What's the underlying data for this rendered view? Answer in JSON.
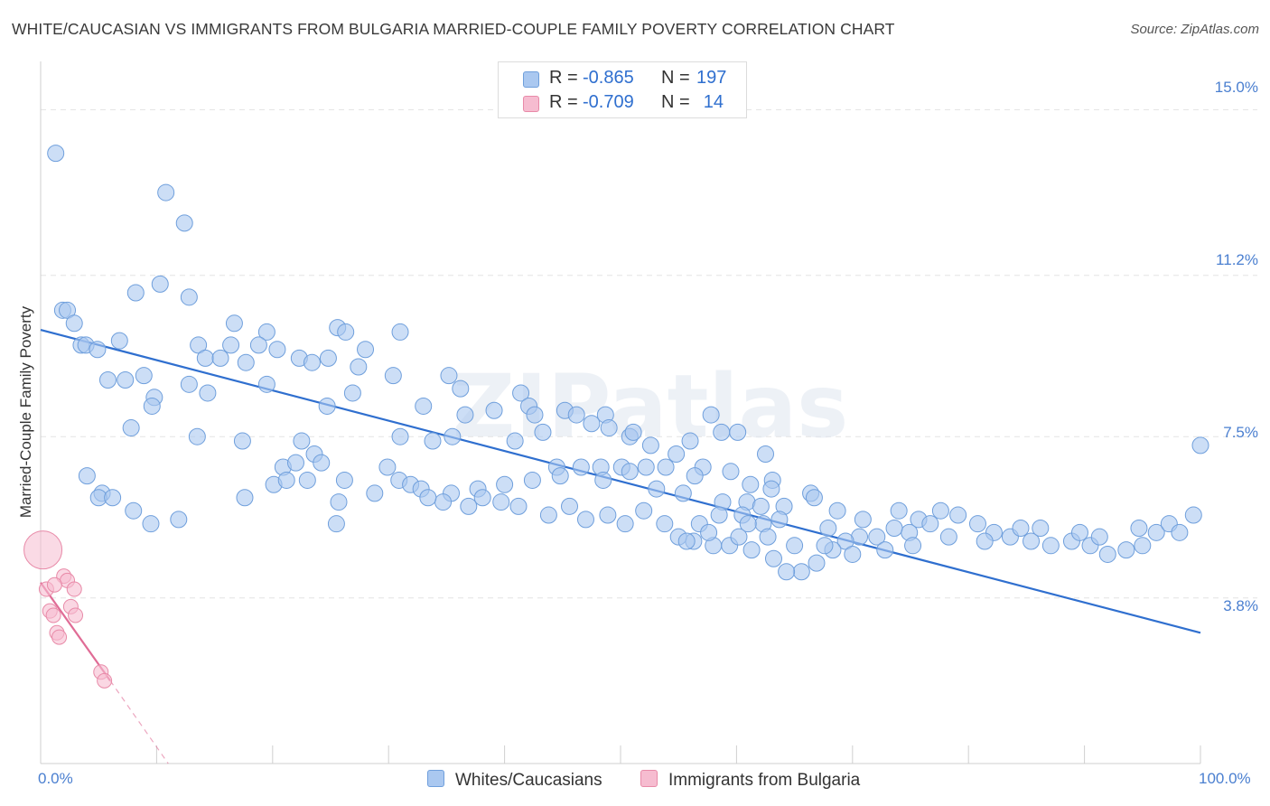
{
  "title": "WHITE/CAUCASIAN VS IMMIGRANTS FROM BULGARIA MARRIED-COUPLE FAMILY POVERTY CORRELATION CHART",
  "source": "Source: ZipAtlas.com",
  "watermark": "ZIPatlas",
  "colors": {
    "blue_fill": "#aac8f0",
    "blue_stroke": "#6f9fdc",
    "blue_line": "#2f6fcf",
    "pink_fill": "#f6bcd0",
    "pink_stroke": "#e88aa8",
    "pink_line": "#e06c96",
    "tick_label": "#4a7fd0",
    "grid": "#e3e3e3"
  },
  "legend": {
    "rows": [
      {
        "series": "blue",
        "r_label": "R =",
        "r_value": "-0.865",
        "n_label": "N =",
        "n_value": "197"
      },
      {
        "series": "pink",
        "r_label": "R =",
        "r_value": "-0.709",
        "n_label": "N =",
        "n_value": "14"
      }
    ]
  },
  "bottom_legend": [
    {
      "label": "Whites/Caucasians",
      "color": "#aac8f0"
    },
    {
      "label": "Immigrants from Bulgaria",
      "color": "#f6bcd0"
    }
  ],
  "chart_data": {
    "type": "scatter",
    "title": "WHITE/CAUCASIAN VS IMMIGRANTS FROM BULGARIA MARRIED-COUPLE FAMILY POVERTY CORRELATION CHART",
    "xlabel": "",
    "ylabel": "Married-Couple Family Poverty",
    "xlim": [
      0,
      100
    ],
    "ylim": [
      0,
      15.9
    ],
    "x_tick_labels": [
      "0.0%",
      "100.0%"
    ],
    "x_tick_values": [
      0,
      100
    ],
    "x_minor_ticks": [
      0,
      10,
      20,
      30,
      40,
      50,
      60,
      70,
      80,
      90,
      100
    ],
    "y_tick_labels": [
      "15.0%",
      "11.2%",
      "7.5%",
      "3.8%"
    ],
    "y_tick_values": [
      15.0,
      11.2,
      7.5,
      3.8
    ],
    "grid": true,
    "series": [
      {
        "name": "Whites/Caucasians",
        "color": "blue",
        "points": [
          [
            1.3,
            14.0
          ],
          [
            10.8,
            13.1
          ],
          [
            12.4,
            12.4
          ],
          [
            10.3,
            11.0
          ],
          [
            8.2,
            10.8
          ],
          [
            12.8,
            10.7
          ],
          [
            1.9,
            10.4
          ],
          [
            2.3,
            10.4
          ],
          [
            2.9,
            10.1
          ],
          [
            16.7,
            10.1
          ],
          [
            25.6,
            10.0
          ],
          [
            31.0,
            9.9
          ],
          [
            19.5,
            9.9
          ],
          [
            3.5,
            9.6
          ],
          [
            3.9,
            9.6
          ],
          [
            4.9,
            9.5
          ],
          [
            6.8,
            9.7
          ],
          [
            13.6,
            9.6
          ],
          [
            16.4,
            9.6
          ],
          [
            18.8,
            9.6
          ],
          [
            22.3,
            9.3
          ],
          [
            24.8,
            9.3
          ],
          [
            26.3,
            9.9
          ],
          [
            20.4,
            9.5
          ],
          [
            28.0,
            9.5
          ],
          [
            14.2,
            9.3
          ],
          [
            15.5,
            9.3
          ],
          [
            17.7,
            9.2
          ],
          [
            23.4,
            9.2
          ],
          [
            27.4,
            9.1
          ],
          [
            30.4,
            8.9
          ],
          [
            35.2,
            8.9
          ],
          [
            8.9,
            8.9
          ],
          [
            7.3,
            8.8
          ],
          [
            5.8,
            8.8
          ],
          [
            12.8,
            8.7
          ],
          [
            19.5,
            8.7
          ],
          [
            9.8,
            8.4
          ],
          [
            14.4,
            8.5
          ],
          [
            26.9,
            8.5
          ],
          [
            36.2,
            8.6
          ],
          [
            41.4,
            8.5
          ],
          [
            9.6,
            8.2
          ],
          [
            24.7,
            8.2
          ],
          [
            33.0,
            8.2
          ],
          [
            36.6,
            8.0
          ],
          [
            42.1,
            8.2
          ],
          [
            39.1,
            8.1
          ],
          [
            42.6,
            8.0
          ],
          [
            45.2,
            8.1
          ],
          [
            48.7,
            8.0
          ],
          [
            46.2,
            8.0
          ],
          [
            57.8,
            8.0
          ],
          [
            7.8,
            7.7
          ],
          [
            13.5,
            7.5
          ],
          [
            17.4,
            7.4
          ],
          [
            22.5,
            7.4
          ],
          [
            31.0,
            7.5
          ],
          [
            33.8,
            7.4
          ],
          [
            35.5,
            7.5
          ],
          [
            40.9,
            7.4
          ],
          [
            43.3,
            7.6
          ],
          [
            47.5,
            7.8
          ],
          [
            49.0,
            7.7
          ],
          [
            50.8,
            7.5
          ],
          [
            51.1,
            7.6
          ],
          [
            52.6,
            7.3
          ],
          [
            54.8,
            7.1
          ],
          [
            56.0,
            7.4
          ],
          [
            58.7,
            7.6
          ],
          [
            60.1,
            7.6
          ],
          [
            62.5,
            7.1
          ],
          [
            20.9,
            6.8
          ],
          [
            22.0,
            6.9
          ],
          [
            23.6,
            7.1
          ],
          [
            24.2,
            6.9
          ],
          [
            29.9,
            6.8
          ],
          [
            30.9,
            6.5
          ],
          [
            31.9,
            6.4
          ],
          [
            40.0,
            6.4
          ],
          [
            44.5,
            6.8
          ],
          [
            46.6,
            6.8
          ],
          [
            48.3,
            6.8
          ],
          [
            50.1,
            6.8
          ],
          [
            52.2,
            6.8
          ],
          [
            53.9,
            6.8
          ],
          [
            57.1,
            6.8
          ],
          [
            56.4,
            6.6
          ],
          [
            59.5,
            6.7
          ],
          [
            61.2,
            6.4
          ],
          [
            63.1,
            6.5
          ],
          [
            66.4,
            6.2
          ],
          [
            5.3,
            6.2
          ],
          [
            17.6,
            6.1
          ],
          [
            20.1,
            6.4
          ],
          [
            21.2,
            6.5
          ],
          [
            23.0,
            6.5
          ],
          [
            25.7,
            6.0
          ],
          [
            26.2,
            6.5
          ],
          [
            32.8,
            6.3
          ],
          [
            35.4,
            6.2
          ],
          [
            37.7,
            6.3
          ],
          [
            42.4,
            6.5
          ],
          [
            44.8,
            6.6
          ],
          [
            48.5,
            6.5
          ],
          [
            50.8,
            6.7
          ],
          [
            53.1,
            6.3
          ],
          [
            55.4,
            6.2
          ],
          [
            58.8,
            6.0
          ],
          [
            60.9,
            6.0
          ],
          [
            62.1,
            5.9
          ],
          [
            64.1,
            5.9
          ],
          [
            66.7,
            6.1
          ],
          [
            68.7,
            5.8
          ],
          [
            60.5,
            5.7
          ],
          [
            62.3,
            5.5
          ],
          [
            63.0,
            6.3
          ],
          [
            4.0,
            6.6
          ],
          [
            5.0,
            6.1
          ],
          [
            8.0,
            5.8
          ],
          [
            6.2,
            6.1
          ],
          [
            9.5,
            5.5
          ],
          [
            11.9,
            5.6
          ],
          [
            25.5,
            5.5
          ],
          [
            56.8,
            5.5
          ],
          [
            58.5,
            5.7
          ],
          [
            61.0,
            5.5
          ],
          [
            63.7,
            5.6
          ],
          [
            70.9,
            5.6
          ],
          [
            74.0,
            5.8
          ],
          [
            67.9,
            5.4
          ],
          [
            75.7,
            5.6
          ],
          [
            77.6,
            5.8
          ],
          [
            79.1,
            5.7
          ],
          [
            76.7,
            5.5
          ],
          [
            74.9,
            5.3
          ],
          [
            73.6,
            5.4
          ],
          [
            72.1,
            5.2
          ],
          [
            70.6,
            5.2
          ],
          [
            69.4,
            5.1
          ],
          [
            68.3,
            4.9
          ],
          [
            66.9,
            4.6
          ],
          [
            65.6,
            4.4
          ],
          [
            64.3,
            4.4
          ],
          [
            63.2,
            4.7
          ],
          [
            61.3,
            4.9
          ],
          [
            59.4,
            5.0
          ],
          [
            58.0,
            5.0
          ],
          [
            56.3,
            5.1
          ],
          [
            55.0,
            5.2
          ],
          [
            80.8,
            5.5
          ],
          [
            82.2,
            5.3
          ],
          [
            83.6,
            5.2
          ],
          [
            85.4,
            5.1
          ],
          [
            87.1,
            5.0
          ],
          [
            88.9,
            5.1
          ],
          [
            90.5,
            5.0
          ],
          [
            92.0,
            4.8
          ],
          [
            93.6,
            4.9
          ],
          [
            95.0,
            5.0
          ],
          [
            96.2,
            5.3
          ],
          [
            97.3,
            5.5
          ],
          [
            98.2,
            5.3
          ],
          [
            99.4,
            5.7
          ],
          [
            100.0,
            7.3
          ],
          [
            94.7,
            5.4
          ],
          [
            91.3,
            5.2
          ],
          [
            89.6,
            5.3
          ],
          [
            86.2,
            5.4
          ],
          [
            84.5,
            5.4
          ],
          [
            81.4,
            5.1
          ],
          [
            78.3,
            5.2
          ],
          [
            75.2,
            5.0
          ],
          [
            72.8,
            4.9
          ],
          [
            70.0,
            4.8
          ],
          [
            67.6,
            5.0
          ],
          [
            65.0,
            5.0
          ],
          [
            62.7,
            5.2
          ],
          [
            60.2,
            5.2
          ],
          [
            57.6,
            5.3
          ],
          [
            55.7,
            5.1
          ],
          [
            53.8,
            5.5
          ],
          [
            52.0,
            5.8
          ],
          [
            50.4,
            5.5
          ],
          [
            48.9,
            5.7
          ],
          [
            47.0,
            5.6
          ],
          [
            45.6,
            5.9
          ],
          [
            43.8,
            5.7
          ],
          [
            41.2,
            5.9
          ],
          [
            39.7,
            6.0
          ],
          [
            38.1,
            6.1
          ],
          [
            36.9,
            5.9
          ],
          [
            34.7,
            6.0
          ],
          [
            33.4,
            6.1
          ],
          [
            28.8,
            6.2
          ]
        ]
      },
      {
        "name": "Immigrants from Bulgaria",
        "color": "pink",
        "points": [
          [
            0.2,
            4.9
          ],
          [
            0.5,
            4.0
          ],
          [
            0.8,
            3.5
          ],
          [
            1.1,
            3.4
          ],
          [
            1.4,
            3.0
          ],
          [
            1.6,
            2.9
          ],
          [
            2.0,
            4.3
          ],
          [
            2.3,
            4.2
          ],
          [
            2.6,
            3.6
          ],
          [
            2.9,
            4.0
          ],
          [
            1.2,
            4.1
          ],
          [
            3.0,
            3.4
          ],
          [
            5.2,
            2.1
          ],
          [
            5.5,
            1.9
          ]
        ]
      }
    ],
    "trendlines": [
      {
        "series": "Whites/Caucasians",
        "x": [
          0,
          100
        ],
        "y": [
          9.95,
          3.0
        ],
        "style": "solid"
      },
      {
        "series": "Immigrants from Bulgaria",
        "x": [
          0,
          6
        ],
        "y": [
          4.15,
          1.9
        ],
        "style": "solid"
      },
      {
        "series": "Immigrants from Bulgaria",
        "x": [
          6,
          11
        ],
        "y": [
          1.9,
          0.0
        ],
        "style": "dashed"
      }
    ]
  }
}
